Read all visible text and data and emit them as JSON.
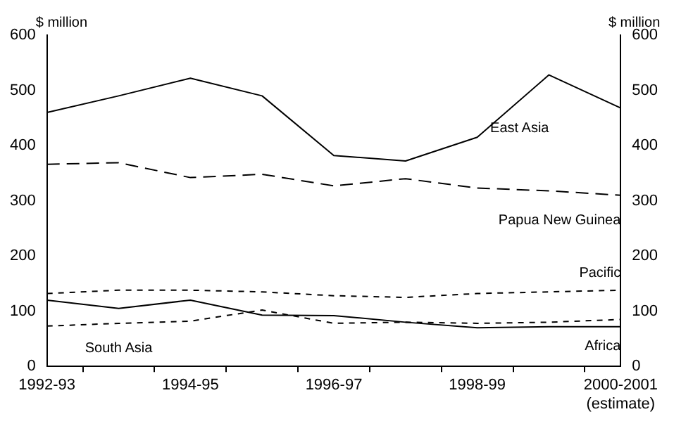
{
  "chart_data": {
    "type": "line",
    "ylabel": "$ million",
    "y2label": "$ million",
    "categories": [
      "1992-93",
      null,
      "1994-95",
      null,
      "1996-97",
      null,
      "1998-99",
      null,
      "2000-2001\n(estimate)"
    ],
    "series": [
      {
        "name": "East Asia",
        "color": "#000000",
        "line_style": "solid",
        "values": [
          460,
          490,
          522,
          490,
          382,
          372,
          415,
          528,
          468
        ]
      },
      {
        "name": "Papua New Guinea",
        "color": "#000000",
        "line_style": "dashed",
        "values": [
          366,
          369,
          342,
          348,
          327,
          340,
          323,
          318,
          310
        ]
      },
      {
        "name": "Pacific",
        "color": "#000000",
        "line_style": "dotted",
        "values": [
          132,
          138,
          138,
          135,
          128,
          125,
          132,
          135,
          138
        ]
      },
      {
        "name": "South Asia",
        "color": "#000000",
        "line_style": "dotted",
        "values": [
          73,
          78,
          82,
          102,
          78,
          80,
          78,
          80,
          85
        ]
      },
      {
        "name": "Africa",
        "color": "#000000",
        "line_style": "solid",
        "values": [
          120,
          105,
          120,
          93,
          92,
          80,
          70,
          72,
          72
        ]
      }
    ],
    "ylim": [
      0,
      600
    ],
    "yticks": [
      0,
      100,
      200,
      300,
      400,
      500,
      600
    ],
    "y2lim": [
      0,
      600
    ],
    "y2ticks": [
      0,
      100,
      200,
      300,
      400,
      500,
      600
    ],
    "grid": false,
    "legend": false,
    "marker": "none"
  }
}
